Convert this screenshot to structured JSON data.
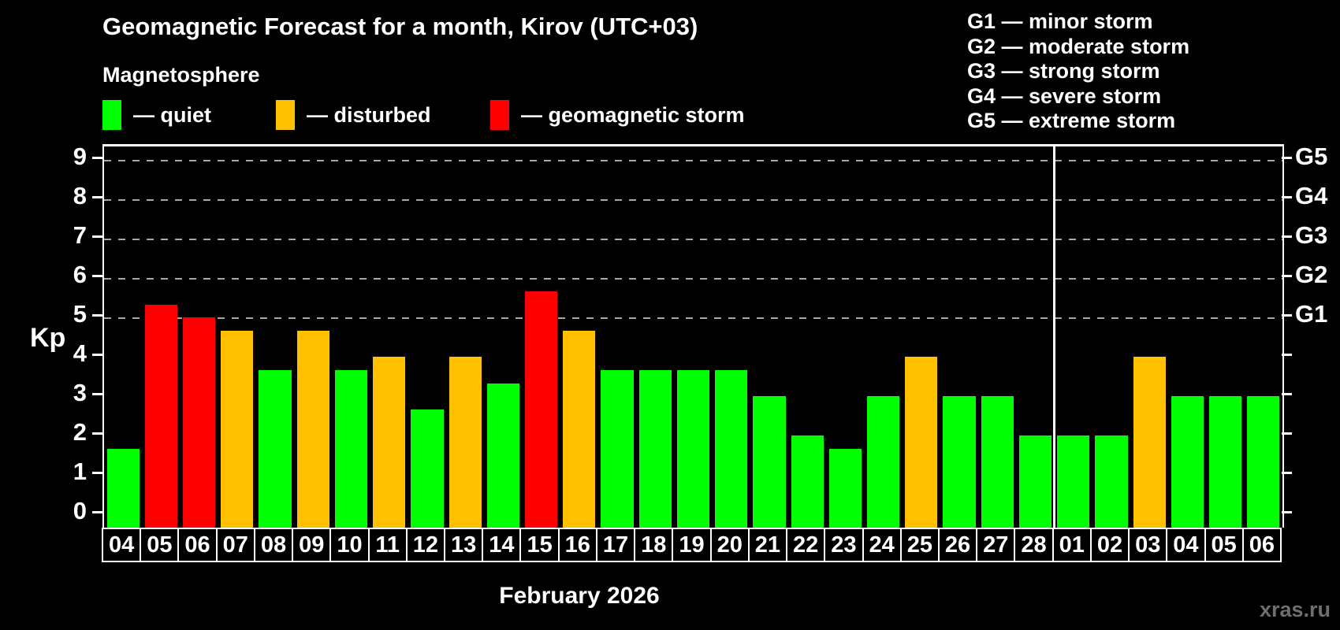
{
  "header": {
    "title": "Geomagnetic Forecast for a month, Kirov (UTC+03)",
    "subtitle": "Magnetosphere"
  },
  "legend": {
    "items": [
      {
        "name": "quiet",
        "label": "— quiet",
        "color": "#00ff00"
      },
      {
        "name": "disturbed",
        "label": "— disturbed",
        "color": "#ffc000"
      },
      {
        "name": "storm",
        "label": "— geomagnetic storm",
        "color": "#ff0000"
      }
    ]
  },
  "storm_scale_legend": {
    "lines": [
      "G1 — minor storm",
      "G2 — moderate storm",
      "G3 — strong storm",
      "G4 — severe storm",
      "G5 — extreme storm"
    ]
  },
  "footer": {
    "month_label": "February 2026",
    "watermark": "xras.ru"
  },
  "chart_data": {
    "type": "bar",
    "title": "Geomagnetic Forecast for a month, Kirov (UTC+03)",
    "ylabel": "Kp",
    "xlabel": "February 2026",
    "ylim": [
      0,
      9.33
    ],
    "yticks": [
      0,
      1,
      2,
      3,
      4,
      5,
      6,
      7,
      8,
      9
    ],
    "gridlines_at_kp": [
      5,
      6,
      7,
      8,
      9
    ],
    "grid": "dashed horizontal lines at storm levels only",
    "legend_position": "top-left",
    "right_axis": {
      "labels": [
        "G1",
        "G2",
        "G3",
        "G4",
        "G5"
      ],
      "kp_levels": [
        5,
        6,
        7,
        8,
        9
      ]
    },
    "month_separator_after_index": 24,
    "colors": {
      "quiet": "#00ff00",
      "disturbed": "#ffc000",
      "storm": "#ff0000"
    },
    "categories": [
      "04",
      "05",
      "06",
      "07",
      "08",
      "09",
      "10",
      "11",
      "12",
      "13",
      "14",
      "15",
      "16",
      "17",
      "18",
      "19",
      "20",
      "21",
      "22",
      "23",
      "24",
      "25",
      "26",
      "27",
      "28",
      "01",
      "02",
      "03",
      "04",
      "05",
      "06"
    ],
    "values": [
      1.67,
      5.33,
      5.0,
      4.67,
      3.67,
      4.67,
      3.67,
      4.0,
      2.67,
      4.0,
      3.33,
      5.67,
      4.67,
      3.67,
      3.67,
      3.67,
      3.67,
      3.0,
      2.0,
      1.67,
      3.0,
      4.0,
      3.0,
      3.0,
      2.0,
      2.0,
      2.0,
      4.0,
      3.0,
      3.0,
      3.0
    ],
    "states": [
      "quiet",
      "storm",
      "storm",
      "disturbed",
      "quiet",
      "disturbed",
      "quiet",
      "disturbed",
      "quiet",
      "disturbed",
      "quiet",
      "storm",
      "disturbed",
      "quiet",
      "quiet",
      "quiet",
      "quiet",
      "quiet",
      "quiet",
      "quiet",
      "quiet",
      "disturbed",
      "quiet",
      "quiet",
      "quiet",
      "quiet",
      "quiet",
      "disturbed",
      "quiet",
      "quiet",
      "quiet"
    ]
  }
}
